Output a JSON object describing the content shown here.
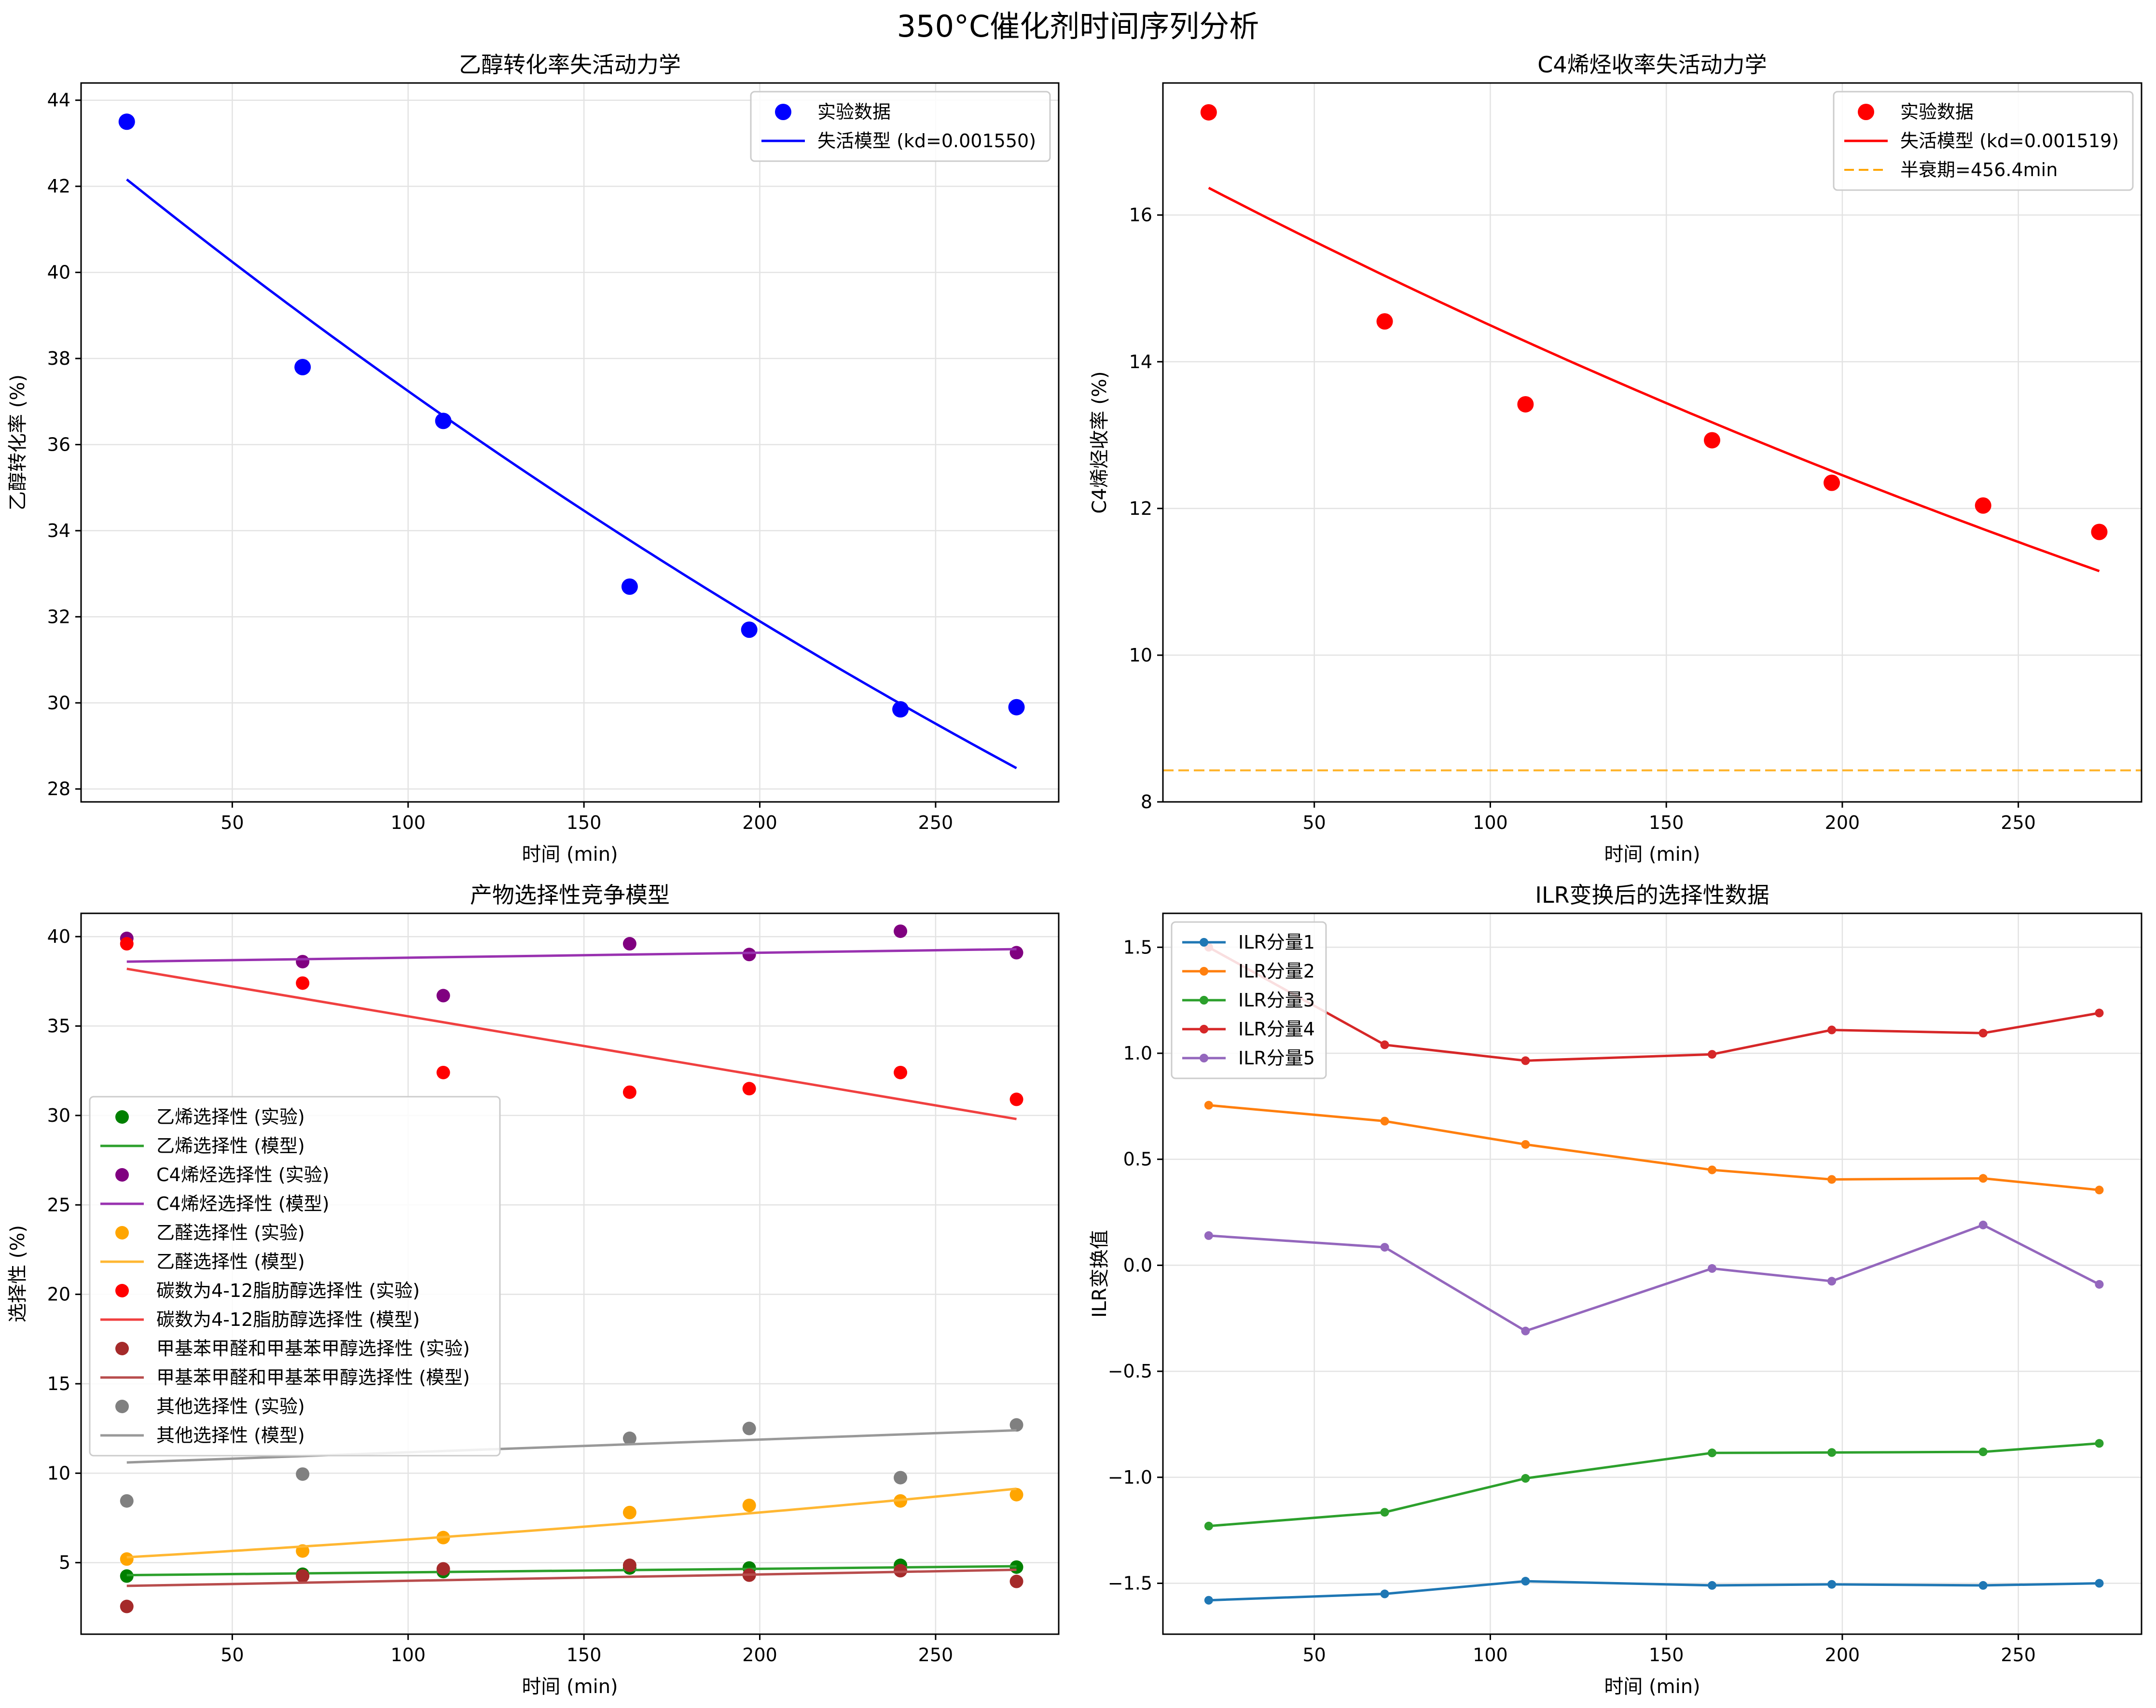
{
  "figure": {
    "suptitle": "350°C催化剂时间序列分析"
  },
  "chart_data": [
    {
      "id": "p1",
      "type": "scatter",
      "title": "乙醇转化率失活动力学",
      "xlabel": "时间 (min)",
      "ylabel": "乙醇转化率 (%)",
      "xlim": [
        7,
        285
      ],
      "ylim": [
        27.7,
        44.4
      ],
      "xticks": [
        50,
        100,
        150,
        200,
        250
      ],
      "yticks": [
        28,
        30,
        32,
        34,
        36,
        38,
        40,
        42,
        44
      ],
      "grid": true,
      "legend_position": "top-right",
      "series": [
        {
          "name": "实验数据",
          "kind": "scatter",
          "color": "#0000ff",
          "x": [
            20,
            70,
            110,
            163,
            197,
            240,
            273
          ],
          "y": [
            43.5,
            37.8,
            36.55,
            32.7,
            31.7,
            29.85,
            29.9
          ]
        },
        {
          "name": "失活模型 (kd=0.001550)",
          "kind": "curve",
          "color": "#0000ff",
          "model": "exp",
          "a": 42.16,
          "k": 0.00155,
          "x0": 20,
          "xmin": 20,
          "xmax": 273
        }
      ]
    },
    {
      "id": "p2",
      "type": "scatter",
      "title": "C4烯烃收率失活动力学",
      "xlabel": "时间 (min)",
      "ylabel": "C4烯烃收率 (%)",
      "xlim": [
        7,
        285
      ],
      "ylim": [
        8.0,
        17.8
      ],
      "xticks": [
        50,
        100,
        150,
        200,
        250
      ],
      "yticks": [
        8,
        10,
        12,
        14,
        16
      ],
      "grid": true,
      "legend_position": "top-right",
      "series": [
        {
          "name": "实验数据",
          "kind": "scatter",
          "color": "#ff0000",
          "x": [
            20,
            70,
            110,
            163,
            197,
            240,
            273
          ],
          "y": [
            17.4,
            14.55,
            13.42,
            12.93,
            12.35,
            12.04,
            11.68
          ]
        },
        {
          "name": "失活模型 (kd=0.001519)",
          "kind": "curve",
          "color": "#ff0000",
          "model": "exp",
          "a": 16.37,
          "k": 0.001519,
          "x0": 20,
          "xmin": 20,
          "xmax": 273
        },
        {
          "name": "半衰期=456.4min",
          "kind": "hline",
          "color": "#ffa500",
          "dash": true,
          "y": 8.43
        }
      ]
    },
    {
      "id": "p3",
      "type": "scatter",
      "title": "产物选择性竞争模型",
      "xlabel": "时间 (min)",
      "ylabel": "选择性 (%)",
      "xlim": [
        7,
        285
      ],
      "ylim": [
        1.0,
        41.3
      ],
      "xticks": [
        50,
        100,
        150,
        200,
        250
      ],
      "yticks": [
        5,
        10,
        15,
        20,
        25,
        30,
        35,
        40
      ],
      "grid": true,
      "legend_position": "center-left",
      "series": [
        {
          "name": "乙烯选择性 (实验)",
          "kind": "scatter",
          "color": "#008000",
          "x": [
            20,
            70,
            110,
            163,
            197,
            240,
            273
          ],
          "y": [
            4.25,
            4.35,
            4.5,
            4.7,
            4.7,
            4.85,
            4.75
          ]
        },
        {
          "name": "乙烯选择性 (模型)",
          "kind": "line",
          "color": "#2ca02c",
          "x": [
            20,
            273
          ],
          "y": [
            4.3,
            4.8
          ]
        },
        {
          "name": "C4烯烃选择性 (实验)",
          "kind": "scatter",
          "color": "#800080",
          "x": [
            20,
            70,
            110,
            163,
            197,
            240,
            273
          ],
          "y": [
            39.9,
            38.6,
            36.7,
            39.6,
            39.0,
            40.3,
            39.1
          ]
        },
        {
          "name": "C4烯烃选择性 (模型)",
          "kind": "line",
          "color": "#9932b0",
          "x": [
            20,
            273
          ],
          "y": [
            38.6,
            39.3
          ]
        },
        {
          "name": "乙醛选择性 (实验)",
          "kind": "scatter",
          "color": "#ffa500",
          "x": [
            20,
            70,
            110,
            163,
            197,
            240,
            273
          ],
          "y": [
            5.2,
            5.65,
            6.4,
            7.8,
            8.2,
            8.45,
            8.8
          ]
        },
        {
          "name": "乙醛选择性 (模型)",
          "kind": "curve",
          "color": "#ffb733",
          "model": "exp",
          "a": 5.3,
          "k": 0.00215,
          "x0": 20,
          "xmin": 20,
          "xmax": 273
        },
        {
          "name": "碳数为4-12脂肪醇选择性 (实验)",
          "kind": "scatter",
          "color": "#ff0000",
          "x": [
            20,
            70,
            110,
            163,
            197,
            240,
            273
          ],
          "y": [
            39.6,
            37.4,
            32.4,
            31.3,
            31.5,
            32.4,
            30.9
          ]
        },
        {
          "name": "碳数为4-12脂肪醇选择性 (模型)",
          "kind": "line",
          "color": "#f04040",
          "x": [
            20,
            273
          ],
          "y": [
            38.2,
            29.8
          ]
        },
        {
          "name": "甲基苯甲醛和甲基苯甲醇选择性 (实验)",
          "kind": "scatter",
          "color": "#a52a2a",
          "x": [
            20,
            70,
            110,
            163,
            197,
            240,
            273
          ],
          "y": [
            2.55,
            4.25,
            4.65,
            4.85,
            4.3,
            4.55,
            3.95
          ]
        },
        {
          "name": "甲基苯甲醛和甲基苯甲醇选择性 (模型)",
          "kind": "line",
          "color": "#b84d4d",
          "x": [
            20,
            273
          ],
          "y": [
            3.7,
            4.6
          ]
        },
        {
          "name": "其他选择性 (实验)",
          "kind": "scatter",
          "color": "#808080",
          "x": [
            20,
            70,
            110,
            163,
            197,
            240,
            273
          ],
          "y": [
            8.45,
            9.95,
            null,
            11.95,
            12.5,
            9.75,
            12.7
          ]
        },
        {
          "name": "其他选择性 (模型)",
          "kind": "line",
          "color": "#999999",
          "x": [
            20,
            273
          ],
          "y": [
            10.6,
            12.4
          ]
        }
      ]
    },
    {
      "id": "p4",
      "type": "line",
      "title": "ILR变换后的选择性数据",
      "xlabel": "时间 (min)",
      "ylabel": "ILR变换值",
      "xlim": [
        7,
        285
      ],
      "ylim": [
        -1.74,
        1.66
      ],
      "xticks": [
        50,
        100,
        150,
        200,
        250
      ],
      "yticks": [
        -1.5,
        -1.0,
        -0.5,
        0.0,
        0.5,
        1.0,
        1.5
      ],
      "ytick_labels": [
        "−1.5",
        "−1.0",
        "−0.5",
        "0.0",
        "0.5",
        "1.0",
        "1.5"
      ],
      "grid": true,
      "legend_position": "top-left",
      "series": [
        {
          "name": "ILR分量1",
          "kind": "linemarker",
          "color": "#1f77b4",
          "x": [
            20,
            70,
            110,
            163,
            197,
            240,
            273
          ],
          "y": [
            -1.58,
            -1.55,
            -1.49,
            -1.51,
            -1.505,
            -1.51,
            -1.5
          ]
        },
        {
          "name": "ILR分量2",
          "kind": "linemarker",
          "color": "#ff7f0e",
          "x": [
            20,
            70,
            110,
            163,
            197,
            240,
            273
          ],
          "y": [
            0.755,
            0.68,
            0.57,
            0.45,
            0.405,
            0.41,
            0.355
          ]
        },
        {
          "name": "ILR分量3",
          "kind": "linemarker",
          "color": "#2ca02c",
          "x": [
            20,
            70,
            110,
            163,
            197,
            240,
            273
          ],
          "y": [
            -1.23,
            -1.165,
            -1.005,
            -0.885,
            -0.883,
            -0.88,
            -0.84
          ]
        },
        {
          "name": "ILR分量4",
          "kind": "linemarker",
          "color": "#d62728",
          "x": [
            20,
            70,
            110,
            163,
            197,
            240,
            273
          ],
          "y": [
            1.5,
            1.04,
            0.965,
            0.995,
            1.11,
            1.095,
            1.19
          ]
        },
        {
          "name": "ILR分量5",
          "kind": "linemarker",
          "color": "#9467bd",
          "x": [
            20,
            70,
            110,
            163,
            197,
            240,
            273
          ],
          "y": [
            0.14,
            0.085,
            -0.31,
            -0.015,
            -0.075,
            0.19,
            -0.09
          ]
        }
      ]
    }
  ]
}
